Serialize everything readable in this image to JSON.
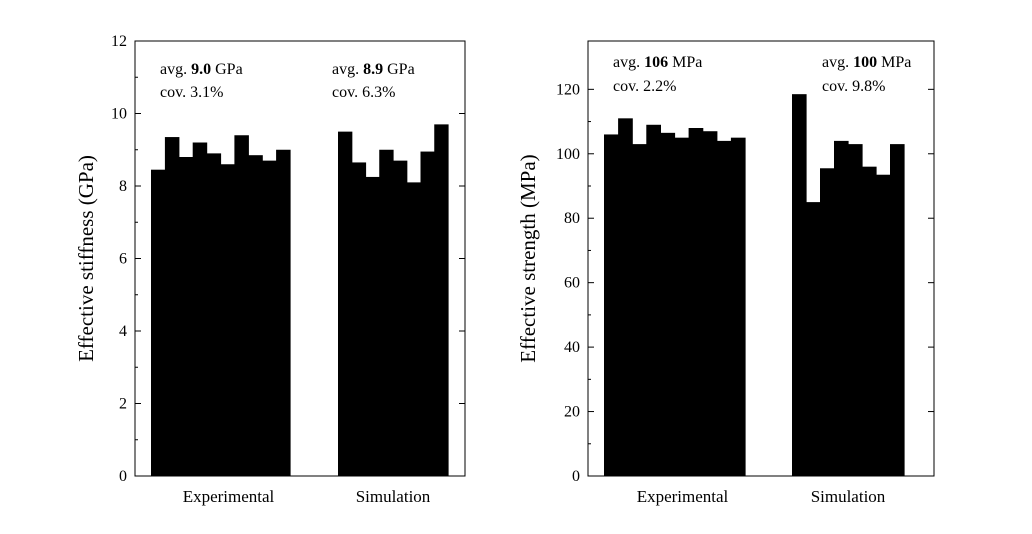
{
  "chart_data": [
    {
      "type": "bar",
      "ylabel": "Effective stiffness (GPa)",
      "ylim": [
        0,
        12
      ],
      "yticks": [
        0,
        2,
        4,
        6,
        8,
        10,
        12
      ],
      "groups": [
        {
          "label": "Experimental",
          "values": [
            8.45,
            9.35,
            8.8,
            9.2,
            8.9,
            8.6,
            9.4,
            8.85,
            8.7,
            9.0
          ],
          "annotation": {
            "prefix": "avg. ",
            "value": "9.0",
            "unit": " GPa",
            "cov": "cov. 3.1%"
          }
        },
        {
          "label": "Simulation",
          "values": [
            9.5,
            8.65,
            8.25,
            9.0,
            8.7,
            8.1,
            8.95,
            9.7
          ],
          "annotation": {
            "prefix": "avg. ",
            "value": "8.9",
            "unit": " GPa",
            "cov": "cov. 6.3%"
          }
        }
      ]
    },
    {
      "type": "bar",
      "ylabel": "Effective strength (MPa)",
      "ylim": [
        0,
        135
      ],
      "yticks": [
        0,
        20,
        40,
        60,
        80,
        100,
        120
      ],
      "groups": [
        {
          "label": "Experimental",
          "values": [
            106,
            111,
            103,
            109,
            106.5,
            105,
            108,
            107,
            104,
            105
          ],
          "annotation": {
            "prefix": "avg. ",
            "value": "106",
            "unit": " MPa",
            "cov": "cov. 2.2%"
          }
        },
        {
          "label": "Simulation",
          "values": [
            118.5,
            85,
            95.5,
            104,
            103,
            96,
            93.5,
            103
          ],
          "annotation": {
            "prefix": "avg. ",
            "value": "100",
            "unit": " MPa",
            "cov": "cov. 9.8%"
          }
        }
      ]
    }
  ]
}
